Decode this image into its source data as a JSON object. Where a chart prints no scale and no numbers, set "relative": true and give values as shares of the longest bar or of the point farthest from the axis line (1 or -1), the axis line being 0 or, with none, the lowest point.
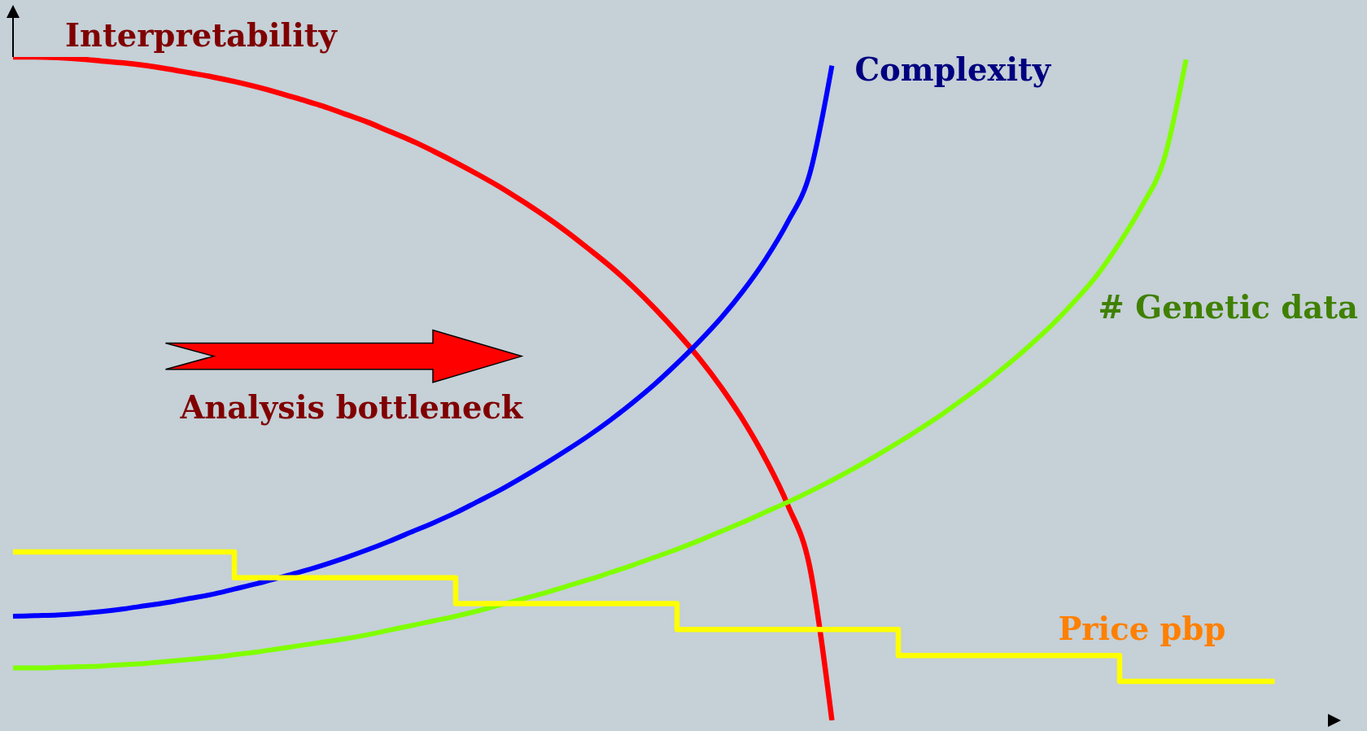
{
  "chart_data": {
    "type": "line",
    "relative": true,
    "categories": [
      null,
      null,
      null,
      null,
      null,
      null,
      null,
      null,
      null,
      null,
      null,
      null,
      null,
      null,
      null,
      null,
      null,
      null,
      null,
      null,
      null,
      null,
      null,
      null,
      null,
      null,
      null,
      null,
      null,
      null,
      null,
      null,
      null,
      null,
      null,
      null,
      null,
      null,
      null,
      null,
      null,
      null,
      null,
      null,
      null,
      null,
      null,
      null,
      null,
      null,
      null,
      null,
      null,
      null,
      null,
      null,
      null,
      null,
      null,
      null,
      null
    ],
    "series": [
      {
        "name": "Interpretability",
        "color": "#ff0000",
        "values": [
          1.0,
          1.0,
          0.999,
          0.997,
          0.994,
          0.991,
          0.987,
          0.982,
          0.976,
          0.97,
          0.963,
          0.955,
          0.946,
          0.936,
          0.926,
          0.914,
          0.902,
          0.888,
          0.874,
          0.858,
          0.841,
          0.823,
          0.804,
          0.783,
          0.761,
          0.737,
          0.711,
          0.684,
          0.654,
          0.621,
          0.585,
          0.546,
          0.502,
          0.452,
          0.394,
          0.325,
          0.231,
          0,
          null,
          null,
          null,
          null,
          null,
          null,
          null,
          null,
          null,
          null,
          null,
          null,
          null,
          null,
          null,
          null,
          null,
          null,
          null,
          null,
          null,
          null,
          null
        ]
      },
      {
        "name": "Complexity",
        "color": "#0000ff",
        "values": [
          0.157,
          0.158,
          0.159,
          0.161,
          0.164,
          0.168,
          0.173,
          0.178,
          0.184,
          0.19,
          0.198,
          0.206,
          0.215,
          0.224,
          0.234,
          0.245,
          0.257,
          0.27,
          0.284,
          0.298,
          0.313,
          0.33,
          0.347,
          0.366,
          0.386,
          0.407,
          0.429,
          0.453,
          0.479,
          0.507,
          0.538,
          0.571,
          0.607,
          0.648,
          0.695,
          0.751,
          0.824,
          0.987,
          null,
          null,
          null,
          null,
          null,
          null,
          null,
          null,
          null,
          null,
          null,
          null,
          null,
          null,
          null,
          null,
          null,
          null,
          null,
          null,
          null,
          null,
          null
        ]
      },
      {
        "name": "# Genetic data",
        "color": "#80ff00",
        "values": [
          0.079,
          0.079,
          0.08,
          0.081,
          0.082,
          0.084,
          0.086,
          0.089,
          0.092,
          0.095,
          0.099,
          0.103,
          0.108,
          0.113,
          0.118,
          0.123,
          0.129,
          0.136,
          0.143,
          0.15,
          0.157,
          0.165,
          0.174,
          0.183,
          0.192,
          0.202,
          0.212,
          0.223,
          0.234,
          0.246,
          0.258,
          0.271,
          0.285,
          0.299,
          0.314,
          0.329,
          0.345,
          0.362,
          0.38,
          0.399,
          0.419,
          0.44,
          0.462,
          0.486,
          0.511,
          0.538,
          0.567,
          0.598,
          0.633,
          0.672,
          0.72,
          0.775,
          0.845,
          0.996,
          null,
          null,
          null,
          null,
          null,
          null,
          null
        ]
      },
      {
        "name": "Price pbp",
        "type": "step",
        "color": "#ffff00",
        "values": [
          0.254,
          0.254,
          0.254,
          0.254,
          0.254,
          0.254,
          0.254,
          0.254,
          0.254,
          0.254,
          0.215,
          0.215,
          0.215,
          0.215,
          0.215,
          0.215,
          0.215,
          0.215,
          0.215,
          0.215,
          0.176,
          0.176,
          0.176,
          0.176,
          0.176,
          0.176,
          0.176,
          0.176,
          0.176,
          0.176,
          0.137,
          0.137,
          0.137,
          0.137,
          0.137,
          0.137,
          0.137,
          0.137,
          0.137,
          0.137,
          0.098,
          0.098,
          0.098,
          0.098,
          0.098,
          0.098,
          0.098,
          0.098,
          0.098,
          0.098,
          0.059,
          0.059,
          0.059,
          0.059,
          0.059,
          0.059,
          0.059,
          0.059,
          null,
          null,
          null
        ]
      }
    ],
    "annotations": [
      "Analysis bottleneck"
    ]
  }
}
